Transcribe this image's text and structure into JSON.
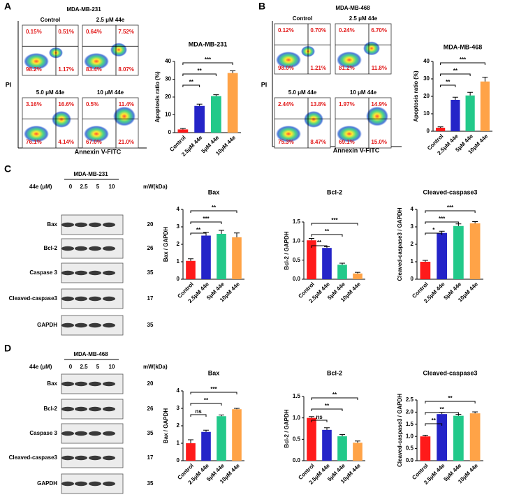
{
  "panels": [
    {
      "label": "A",
      "cell_line": "MDA-MB-231",
      "y_axis": "PI",
      "x_axis": "Annexin V-FITC",
      "flow_plots": [
        {
          "title": "Control",
          "quadrants": [
            "0.15%",
            "0.51%",
            "98.2%",
            "1.17%"
          ]
        },
        {
          "title": "2.5 μM 44e",
          "quadrants": [
            "0.64%",
            "7.52%",
            "83.4%",
            "8.07%"
          ]
        },
        {
          "title": "5.0 μM 44e",
          "quadrants": [
            "3.16%",
            "16.6%",
            "76.1%",
            "4.14%"
          ]
        },
        {
          "title": "10 μM 44e",
          "quadrants": [
            "0.5%",
            "11.4%",
            "67.0%",
            "21.0%"
          ]
        }
      ]
    },
    {
      "label": "B",
      "cell_line": "MDA-MB-468",
      "y_axis": "PI",
      "x_axis": "Annexin V-FITC",
      "flow_plots": [
        {
          "title": "Control",
          "quadrants": [
            "0.12%",
            "0.70%",
            "98.0%",
            "1.21%"
          ]
        },
        {
          "title": "2.5 μM 44e",
          "quadrants": [
            "0.24%",
            "6.70%",
            "81.2%",
            "11.8%"
          ]
        },
        {
          "title": "5.0 μM 44e",
          "quadrants": [
            "2.44%",
            "13.8%",
            "75.3%",
            "8.47%"
          ]
        },
        {
          "title": "10 μM 44e",
          "quadrants": [
            "1.97%",
            "14.9%",
            "69.1%",
            "15.0%"
          ]
        }
      ]
    }
  ],
  "blots": [
    {
      "label": "C",
      "cell_line": "MDA-MB-231",
      "dose_label": "44e (μM)",
      "doses": [
        "0",
        "2.5",
        "5",
        "10"
      ],
      "mw_label": "mW(kDa)",
      "rows": [
        {
          "name": "Bax",
          "mw": "20"
        },
        {
          "name": "Bcl-2",
          "mw": "26"
        },
        {
          "name": "Caspase 3",
          "mw": "35"
        },
        {
          "name": "Cleaved-caspase3",
          "mw": "17"
        },
        {
          "name": "GAPDH",
          "mw": "35"
        }
      ]
    },
    {
      "label": "D",
      "cell_line": "MDA-MB-468",
      "dose_label": "44e (μM)",
      "doses": [
        "0",
        "2.5",
        "5",
        "10"
      ],
      "mw_label": "mW(kDa)",
      "rows": [
        {
          "name": "Bax",
          "mw": "20"
        },
        {
          "name": "Bcl-2",
          "mw": "26"
        },
        {
          "name": "Caspase 3",
          "mw": "35"
        },
        {
          "name": "Cleaved-caspase3",
          "mw": "17"
        },
        {
          "name": "GAPDH",
          "mw": "35"
        }
      ]
    }
  ],
  "chart_data": [
    {
      "type": "bar",
      "title": "MDA-MB-231",
      "y_label": "Apoptosis ratio (%)",
      "categories": [
        "Control",
        "2.5μM 44e",
        "5μM 44e",
        "10μM 44e"
      ],
      "values": [
        1.8,
        15,
        20.5,
        33.5
      ],
      "errors": [
        0.5,
        1,
        0.8,
        1.2
      ],
      "colors": [
        "#ff1a1a",
        "#2424c8",
        "#22c98a",
        "#ffa347"
      ],
      "ylim": [
        0,
        40
      ],
      "yticks": [
        0,
        10,
        20,
        30,
        40
      ],
      "significance": [
        "**",
        "**",
        "***"
      ]
    },
    {
      "type": "bar",
      "title": "MDA-MB-468",
      "y_label": "Apoptosis ratio (%)",
      "categories": [
        "Control",
        "2.5μM 44e",
        "5μM 44e",
        "10μM 44e"
      ],
      "values": [
        2,
        18,
        20.5,
        28.5
      ],
      "errors": [
        0.5,
        1.5,
        1.8,
        2.5
      ],
      "colors": [
        "#ff1a1a",
        "#2424c8",
        "#22c98a",
        "#ffa347"
      ],
      "ylim": [
        0,
        40
      ],
      "yticks": [
        0,
        10,
        20,
        30,
        40
      ],
      "significance": [
        "**",
        "**",
        "***"
      ]
    },
    {
      "type": "bar",
      "title": "Bax",
      "y_label": "Bax / GAPDH",
      "categories": [
        "Control",
        "2.5μM 44e",
        "5μM 44e",
        "10μM 44e"
      ],
      "values": [
        1.05,
        2.5,
        2.6,
        2.4
      ],
      "errors": [
        0.12,
        0.18,
        0.2,
        0.25
      ],
      "colors": [
        "#ff1a1a",
        "#2424c8",
        "#22c98a",
        "#ffa347"
      ],
      "ylim": [
        0,
        4
      ],
      "yticks": [
        0,
        1,
        2,
        3,
        4
      ],
      "significance": [
        "**",
        "***",
        "**"
      ]
    },
    {
      "type": "bar",
      "title": "Bcl-2",
      "y_label": "Bcl-2 / GAPDH",
      "categories": [
        "Control",
        "2.5μM 44e",
        "5μM 44e",
        "10μM 44e"
      ],
      "values": [
        1.02,
        0.82,
        0.38,
        0.15
      ],
      "errors": [
        0.05,
        0.03,
        0.04,
        0.03
      ],
      "colors": [
        "#ff1a1a",
        "#2424c8",
        "#22c98a",
        "#ffa347"
      ],
      "ylim": [
        0,
        1.5
      ],
      "yticks": [
        {
          "value": 0,
          "label": "0.0"
        },
        0.5,
        {
          "value": 1,
          "label": "1.0"
        },
        1.5
      ],
      "significance": [
        "**",
        "**",
        "***"
      ]
    },
    {
      "type": "bar",
      "title": "Cleaved-caspase3",
      "y_label": "Cleaved-caspase3 / GAPDH",
      "categories": [
        "Control",
        "2.5μM 44e",
        "5μM 44e",
        "10μM 44e"
      ],
      "values": [
        1.0,
        2.65,
        3.05,
        3.2
      ],
      "errors": [
        0.08,
        0.1,
        0.12,
        0.1
      ],
      "colors": [
        "#ff1a1a",
        "#2424c8",
        "#22c98a",
        "#ffa347"
      ],
      "ylim": [
        0,
        4
      ],
      "yticks": [
        0,
        1,
        2,
        3,
        4
      ],
      "significance": [
        "*",
        "***",
        "***"
      ]
    },
    {
      "type": "bar",
      "title": "Bax",
      "y_label": "Bax / GAPDH",
      "categories": [
        "Control",
        "2.5μM 44e",
        "5μM 44e",
        "10μM 44e"
      ],
      "values": [
        1.0,
        1.65,
        2.55,
        2.95
      ],
      "errors": [
        0.2,
        0.1,
        0.07,
        0.05
      ],
      "colors": [
        "#ff1a1a",
        "#2424c8",
        "#22c98a",
        "#ffa347"
      ],
      "ylim": [
        0,
        4
      ],
      "yticks": [
        0,
        1,
        2,
        3,
        4
      ],
      "significance": [
        "ns",
        "**",
        "***"
      ]
    },
    {
      "type": "bar",
      "title": "Bcl-2",
      "y_label": "Bcl-2 / GAPDH",
      "categories": [
        "Control",
        "2.5μM 44e",
        "5μM 44e",
        "10μM 44e"
      ],
      "values": [
        1.0,
        0.72,
        0.57,
        0.42
      ],
      "errors": [
        0.03,
        0.05,
        0.04,
        0.04
      ],
      "colors": [
        "#ff1a1a",
        "#2424c8",
        "#22c98a",
        "#ffa347"
      ],
      "ylim": [
        0,
        1.5
      ],
      "yticks": [
        {
          "value": 0,
          "label": "0.0"
        },
        0.5,
        {
          "value": 1,
          "label": "1.0"
        },
        1.5
      ],
      "significance": [
        "ns",
        "**",
        "**"
      ]
    },
    {
      "type": "bar",
      "title": "Cleaved-caspase3",
      "y_label": "Cleaved-caspase3 / GAPDH",
      "categories": [
        "Control",
        "2.5μM 44e",
        "5μM 44e",
        "10μM 44e"
      ],
      "values": [
        1.0,
        1.92,
        1.85,
        1.95
      ],
      "errors": [
        0.05,
        0.07,
        0.06,
        0.06
      ],
      "colors": [
        "#ff1a1a",
        "#2424c8",
        "#22c98a",
        "#ffa347"
      ],
      "ylim": [
        0,
        2.5
      ],
      "yticks": [
        {
          "value": 0,
          "label": "0.0"
        },
        0.5,
        {
          "value": 1,
          "label": "1.0"
        },
        1.5,
        {
          "value": 2,
          "label": "2.0"
        },
        2.5
      ],
      "significance": [
        "**",
        "**",
        "**"
      ]
    }
  ]
}
